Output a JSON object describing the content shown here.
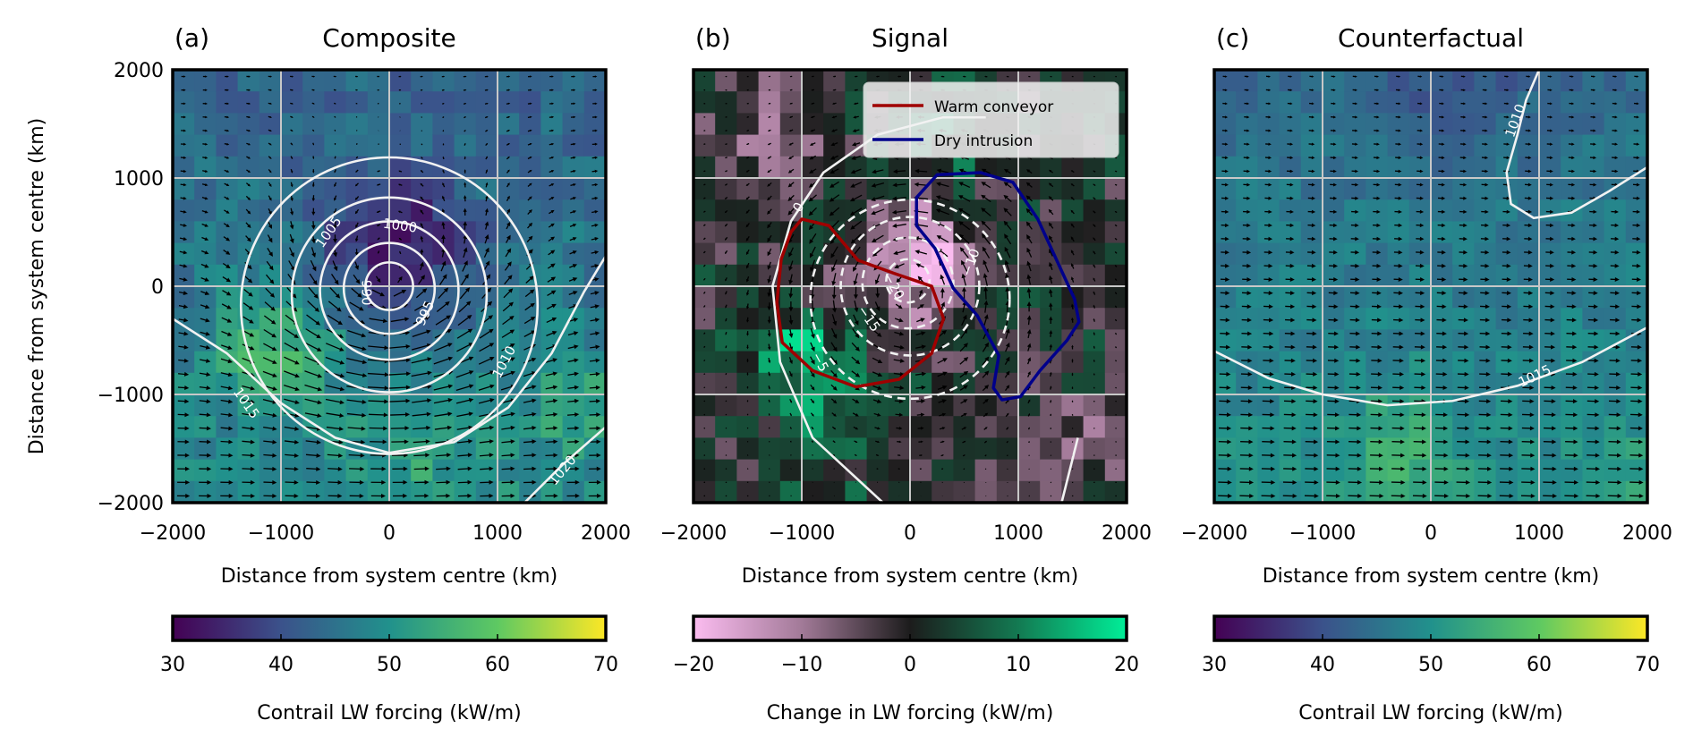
{
  "chart_data": [
    {
      "type": "heatmap",
      "panel_label": "(a)",
      "title": "Composite",
      "xlabel": "Distance from system centre (km)",
      "ylabel": "Distance from system centre (km)",
      "xlim": [
        -2000,
        2000
      ],
      "ylim": [
        -2000,
        2000
      ],
      "xticks": [
        "−2000",
        "−1000",
        "0",
        "1000",
        "2000"
      ],
      "yticks": [
        "2000",
        "1000",
        "0",
        "−1000",
        "−2000"
      ],
      "grid": true,
      "colormap": "viridis",
      "colorbar": {
        "label": "Contrail LW forcing (kW/m)",
        "range": [
          30,
          70
        ],
        "ticks": [
          "30",
          "40",
          "50",
          "60",
          "70"
        ]
      },
      "overlay": "wind vectors (quiver), cyclonic circulation",
      "contours": [
        {
          "level": "990",
          "style": "solid",
          "circle": {
            "center": [
              0,
              0
            ],
            "radius": 220
          },
          "label_at": [
            -210,
            -60
          ],
          "label_rot": 90
        },
        {
          "level": "995",
          "style": "solid",
          "circle": {
            "center": [
              0,
              -20
            ],
            "radius": 420
          },
          "label_at": [
            330,
            -250
          ],
          "label_rot": -65
        },
        {
          "level": "1000",
          "style": "solid",
          "circle": {
            "center": [
              0,
              -40
            ],
            "radius": 640
          },
          "label_at": [
            100,
            560
          ],
          "label_rot": 8
        },
        {
          "level": "1005",
          "style": "solid",
          "circle": {
            "center": [
              0,
              -80
            ],
            "radius": 900
          },
          "label_at": [
            -560,
            500
          ],
          "label_rot": -55
        },
        {
          "level": "1010",
          "style": "solid",
          "circle": {
            "center": [
              0,
              -180
            ],
            "radius": 1370
          },
          "label_at": [
            1060,
            -700
          ],
          "label_rot": -62
        },
        {
          "level": "1015",
          "style": "solid",
          "points": [
            [
              -2000,
              -300
            ],
            [
              -1500,
              -620
            ],
            [
              -1000,
              -1080
            ],
            [
              -500,
              -1400
            ],
            [
              0,
              -1540
            ],
            [
              600,
              -1440
            ],
            [
              1100,
              -1120
            ],
            [
              1500,
              -620
            ],
            [
              1800,
              -50
            ],
            [
              2000,
              280
            ]
          ],
          "label_at": [
            -1320,
            -1080
          ],
          "label_rot": 55
        },
        {
          "level": "1020",
          "style": "solid",
          "points": [
            [
              1250,
              -2000
            ],
            [
              1600,
              -1650
            ],
            [
              2000,
              -1300
            ]
          ],
          "label_at": [
            1600,
            -1700
          ],
          "label_rot": -50
        }
      ]
    },
    {
      "type": "heatmap",
      "panel_label": "(b)",
      "title": "Signal",
      "xlabel": "Distance from system centre (km)",
      "xlim": [
        -2000,
        2000
      ],
      "ylim": [
        -2000,
        2000
      ],
      "xticks": [
        "−2000",
        "−1000",
        "0",
        "1000",
        "2000"
      ],
      "grid": true,
      "colormap": "pink-black-green diverging",
      "colorbar": {
        "label": "Change in LW forcing (kW/m)",
        "range": [
          -20,
          20
        ],
        "ticks": [
          "−20",
          "−10",
          "0",
          "10",
          "20"
        ]
      },
      "overlay": "wind anomaly vectors (quiver)",
      "contours": [
        {
          "level": "0",
          "style": "solid",
          "points": [
            [
              -250,
              -2000
            ],
            [
              -900,
              -1400
            ],
            [
              -1200,
              -700
            ],
            [
              -1270,
              0
            ],
            [
              -1100,
              600
            ],
            [
              -800,
              1050
            ],
            [
              -300,
              1400
            ],
            [
              300,
              1560
            ],
            [
              700,
              1560
            ]
          ],
          "label_at": [
            -1030,
            730
          ],
          "label_rot": -60
        },
        {
          "level": "0",
          "style": "solid",
          "points": [
            [
              1400,
              -2000
            ],
            [
              1550,
              -1400
            ]
          ],
          "label_at": null
        },
        {
          "level": "−5",
          "style": "dashed",
          "circle": {
            "center": [
              0,
              -120
            ],
            "radius": 920
          },
          "label_at": [
            -830,
            -700
          ],
          "label_rot": 62
        },
        {
          "level": "−10",
          "style": "dashed",
          "circle": {
            "center": [
              0,
              0
            ],
            "radius": 640
          },
          "label_at": [
            560,
            220
          ],
          "label_rot": -70
        },
        {
          "level": "−15",
          "style": "dashed",
          "circle": {
            "center": [
              -20,
              30
            ],
            "radius": 420
          },
          "label_at": [
            -380,
            -300
          ],
          "label_rot": 55
        },
        {
          "level": "−20",
          "style": "dashed",
          "circle": {
            "center": [
              -20,
              50
            ],
            "radius": 200
          },
          "label_at": [
            -150,
            0
          ],
          "label_rot": 60
        }
      ],
      "regions": [
        {
          "name": "Warm conveyor",
          "color": "#a00000",
          "points": [
            [
              -1000,
              620
            ],
            [
              -750,
              560
            ],
            [
              -480,
              240
            ],
            [
              -150,
              120
            ],
            [
              200,
              0
            ],
            [
              310,
              -300
            ],
            [
              200,
              -620
            ],
            [
              -100,
              -860
            ],
            [
              -500,
              -930
            ],
            [
              -900,
              -780
            ],
            [
              -1180,
              -520
            ],
            [
              -1230,
              -150
            ],
            [
              -1190,
              250
            ],
            [
              -1100,
              500
            ]
          ]
        },
        {
          "name": "Dry intrusion",
          "color": "#00008b",
          "points": [
            [
              60,
              820
            ],
            [
              250,
              1030
            ],
            [
              650,
              1050
            ],
            [
              950,
              960
            ],
            [
              1180,
              620
            ],
            [
              1350,
              250
            ],
            [
              1520,
              -120
            ],
            [
              1560,
              -330
            ],
            [
              1450,
              -500
            ],
            [
              1200,
              -780
            ],
            [
              1020,
              -1020
            ],
            [
              850,
              -1050
            ],
            [
              770,
              -940
            ],
            [
              820,
              -640
            ],
            [
              620,
              -270
            ],
            [
              400,
              -20
            ],
            [
              230,
              350
            ],
            [
              60,
              560
            ]
          ]
        }
      ],
      "legend": {
        "placement": "upper-right",
        "entries": [
          "Warm conveyor",
          "Dry intrusion"
        ]
      }
    },
    {
      "type": "heatmap",
      "panel_label": "(c)",
      "title": "Counterfactual",
      "xlabel": "Distance from system centre (km)",
      "xlim": [
        -2000,
        2000
      ],
      "ylim": [
        -2000,
        2000
      ],
      "xticks": [
        "−2000",
        "−1000",
        "0",
        "1000",
        "2000"
      ],
      "grid": true,
      "colormap": "viridis",
      "colorbar": {
        "label": "Contrail LW forcing (kW/m)",
        "range": [
          30,
          70
        ],
        "ticks": [
          "30",
          "40",
          "50",
          "60",
          "70"
        ]
      },
      "overlay": "wind vectors (quiver), westerly flow",
      "contours": [
        {
          "level": "1010",
          "style": "solid",
          "points": [
            [
              1000,
              2000
            ],
            [
              880,
              1720
            ],
            [
              800,
              1400
            ],
            [
              700,
              1050
            ],
            [
              740,
              760
            ],
            [
              950,
              630
            ],
            [
              1300,
              680
            ],
            [
              1650,
              880
            ],
            [
              2000,
              1100
            ]
          ],
          "label_at": [
            780,
            1530
          ],
          "label_rot": -70
        },
        {
          "level": "1015",
          "style": "solid",
          "points": [
            [
              -2000,
              -600
            ],
            [
              -1500,
              -850
            ],
            [
              -1000,
              -1000
            ],
            [
              -400,
              -1100
            ],
            [
              200,
              -1060
            ],
            [
              800,
              -920
            ],
            [
              1400,
              -700
            ],
            [
              2000,
              -380
            ]
          ],
          "label_at": [
            960,
            -830
          ],
          "label_rot": -25
        }
      ]
    }
  ]
}
